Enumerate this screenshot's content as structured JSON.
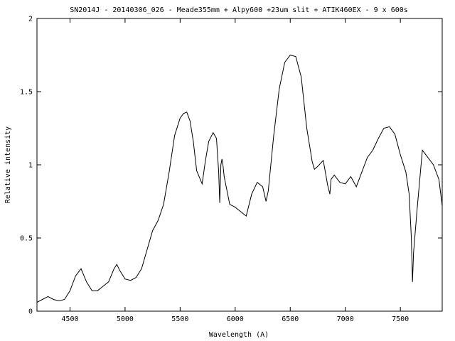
{
  "chart_data": {
    "type": "line",
    "title": "SN2014J - 20140306_026 - Meade355mm + Alpy600 +23um slit + ATIK460EX - 9 x 600s",
    "xlabel": "Wavelength (A)",
    "ylabel": "Relative intensity",
    "xlim": [
      4200,
      7880
    ],
    "ylim": [
      0,
      2
    ],
    "x_ticks": [
      4500,
      5000,
      5500,
      6000,
      6500,
      7000,
      7500
    ],
    "y_ticks": [
      0,
      0.5,
      1,
      1.5,
      2
    ],
    "y_tick_labels": [
      "0",
      "0.5",
      "1",
      "1.5",
      "2"
    ],
    "grid": false,
    "line_color": "#000000",
    "series": [
      {
        "x": [
          4200,
          4250,
          4300,
          4350,
          4400,
          4450,
          4500,
          4550,
          4600,
          4650,
          4700,
          4750,
          4800,
          4850,
          4900,
          4925,
          4950,
          5000,
          5050,
          5100,
          5150,
          5200,
          5250,
          5300,
          5350,
          5400,
          5450,
          5500,
          5530,
          5560,
          5590,
          5620,
          5650,
          5700,
          5730,
          5760,
          5800,
          5830,
          5850,
          5860,
          5870,
          5880,
          5890,
          5900,
          5950,
          6000,
          6050,
          6100,
          6150,
          6200,
          6250,
          6280,
          6300,
          6350,
          6400,
          6450,
          6500,
          6550,
          6600,
          6650,
          6700,
          6720,
          6750,
          6800,
          6840,
          6860,
          6870,
          6900,
          6950,
          7000,
          7050,
          7100,
          7150,
          7200,
          7250,
          7300,
          7350,
          7400,
          7450,
          7500,
          7550,
          7580,
          7600,
          7610,
          7620,
          7650,
          7700,
          7750,
          7800,
          7850,
          7880
        ],
        "y": [
          0.06,
          0.08,
          0.1,
          0.08,
          0.07,
          0.08,
          0.14,
          0.24,
          0.29,
          0.2,
          0.14,
          0.14,
          0.17,
          0.2,
          0.29,
          0.32,
          0.28,
          0.22,
          0.21,
          0.23,
          0.29,
          0.42,
          0.55,
          0.62,
          0.73,
          0.95,
          1.2,
          1.32,
          1.35,
          1.36,
          1.3,
          1.16,
          0.96,
          0.87,
          1.03,
          1.16,
          1.22,
          1.18,
          0.95,
          0.74,
          1.0,
          1.04,
          0.99,
          0.92,
          0.73,
          0.71,
          0.68,
          0.65,
          0.8,
          0.88,
          0.85,
          0.75,
          0.82,
          1.2,
          1.52,
          1.7,
          1.75,
          1.74,
          1.6,
          1.25,
          1.02,
          0.97,
          0.99,
          1.03,
          0.86,
          0.8,
          0.9,
          0.93,
          0.88,
          0.87,
          0.92,
          0.85,
          0.95,
          1.05,
          1.1,
          1.18,
          1.25,
          1.26,
          1.21,
          1.07,
          0.95,
          0.8,
          0.5,
          0.2,
          0.4,
          0.68,
          1.1,
          1.05,
          1.0,
          0.9,
          0.72
        ]
      }
    ]
  }
}
